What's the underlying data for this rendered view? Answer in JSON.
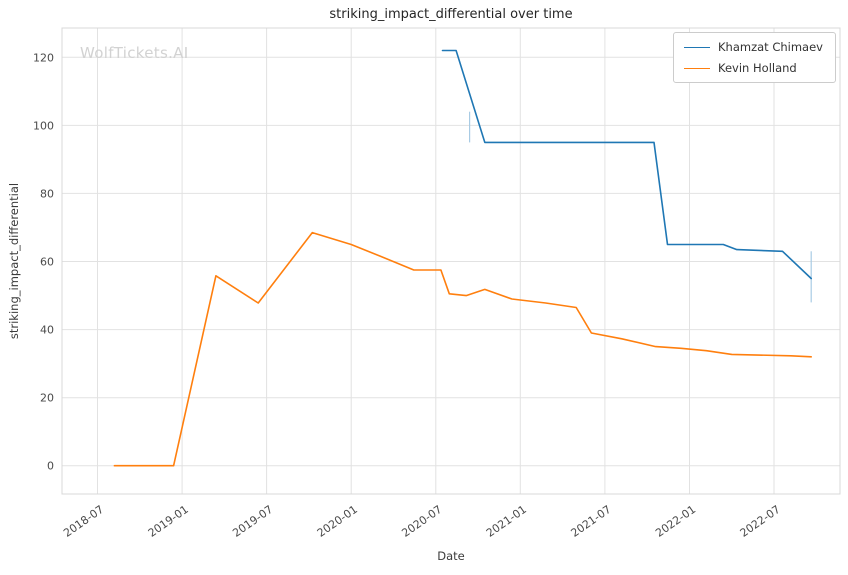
{
  "page": {
    "watermark": "WolfTickets.AI"
  },
  "chart_data": {
    "type": "line",
    "title": "striking_impact_differential over time",
    "xlabel": "Date",
    "ylabel": "striking_impact_differential",
    "grid": true,
    "legend_position": "upper right",
    "xlim": [
      2018.29,
      2022.89
    ],
    "ylim": [
      -8.3,
      128.6
    ],
    "xticks": {
      "values": [
        2018.5,
        2019.0,
        2019.5,
        2020.0,
        2020.5,
        2021.0,
        2021.5,
        2022.0,
        2022.5
      ],
      "labels": [
        "2018-07",
        "2019-01",
        "2019-07",
        "2020-01",
        "2020-07",
        "2021-01",
        "2021-07",
        "2022-01",
        "2022-07"
      ]
    },
    "yticks": [
      0,
      20,
      40,
      60,
      80,
      100,
      120
    ],
    "series": [
      {
        "name": "Khamzat Chimaev",
        "color": "#1f77b4",
        "points": [
          [
            2020.54,
            122
          ],
          [
            2020.62,
            122
          ],
          [
            2020.79,
            95
          ],
          [
            2021.79,
            95
          ],
          [
            2021.87,
            65
          ],
          [
            2022.2,
            65
          ],
          [
            2022.28,
            63.5
          ],
          [
            2022.55,
            63
          ],
          [
            2022.72,
            55
          ]
        ]
      },
      {
        "name": "Kevin Holland",
        "color": "#ff7f0e",
        "points": [
          [
            2018.6,
            0
          ],
          [
            2018.95,
            0
          ],
          [
            2019.2,
            55.8
          ],
          [
            2019.45,
            47.8
          ],
          [
            2019.77,
            68.5
          ],
          [
            2020.0,
            65
          ],
          [
            2020.2,
            61
          ],
          [
            2020.37,
            57.5
          ],
          [
            2020.53,
            57.5
          ],
          [
            2020.58,
            50.5
          ],
          [
            2020.68,
            50
          ],
          [
            2020.79,
            51.8
          ],
          [
            2020.95,
            49
          ],
          [
            2021.15,
            47.8
          ],
          [
            2021.33,
            46.5
          ],
          [
            2021.42,
            39
          ],
          [
            2021.6,
            37.3
          ],
          [
            2021.8,
            35
          ],
          [
            2021.95,
            34.5
          ],
          [
            2022.1,
            33.8
          ],
          [
            2022.25,
            32.7
          ],
          [
            2022.6,
            32.3
          ],
          [
            2022.72,
            32
          ]
        ]
      }
    ],
    "error_bars": [
      {
        "x": 2020.7,
        "y1": 95,
        "y2": 104,
        "color": "#a8cbe4"
      },
      {
        "x": 2022.72,
        "y1": 48,
        "y2": 63,
        "color": "#a8cbe4"
      }
    ]
  }
}
